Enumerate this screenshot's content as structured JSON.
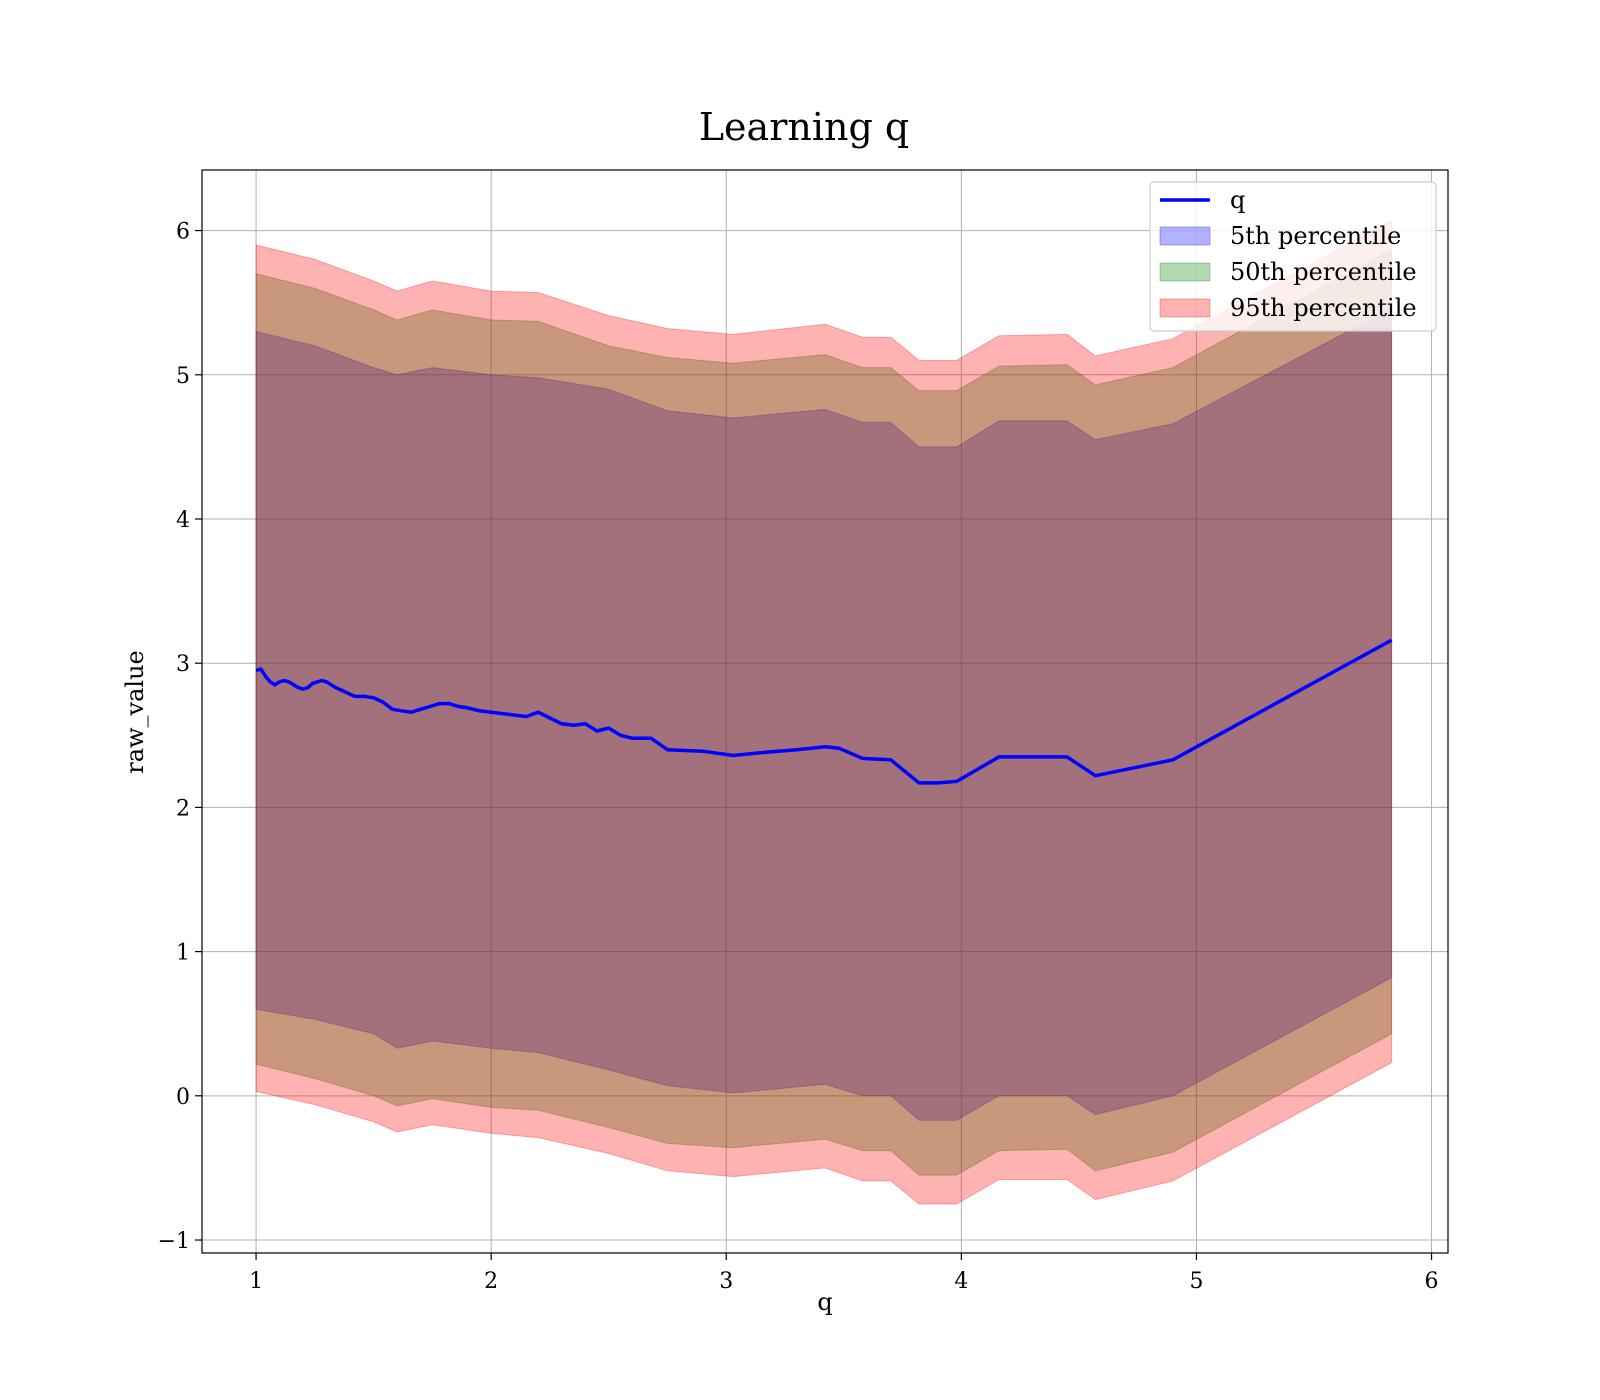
{
  "chart_data": {
    "type": "area",
    "title": "Learning q",
    "xlabel": "q",
    "ylabel": "raw_value",
    "xlim": [
      0.77,
      6.07
    ],
    "ylim": [
      -1.09,
      6.42
    ],
    "xticks": [
      1,
      2,
      3,
      4,
      5,
      6
    ],
    "yticks": [
      -1,
      0,
      1,
      2,
      3,
      4,
      5,
      6
    ],
    "xtick_labels": [
      "1",
      "2",
      "3",
      "4",
      "5",
      "6"
    ],
    "ytick_labels": [
      "−1",
      "0",
      "1",
      "2",
      "3",
      "4",
      "5",
      "6"
    ],
    "grid": true,
    "legend_position": "top-right",
    "line": {
      "name": "q",
      "color": "#0000ff",
      "x": [
        1.0,
        1.02,
        1.04,
        1.06,
        1.08,
        1.1,
        1.12,
        1.14,
        1.16,
        1.18,
        1.2,
        1.22,
        1.24,
        1.26,
        1.28,
        1.3,
        1.34,
        1.38,
        1.42,
        1.46,
        1.5,
        1.54,
        1.58,
        1.62,
        1.66,
        1.7,
        1.74,
        1.78,
        1.82,
        1.86,
        1.9,
        1.95,
        2.0,
        2.05,
        2.1,
        2.15,
        2.2,
        2.25,
        2.3,
        2.35,
        2.4,
        2.45,
        2.5,
        2.55,
        2.6,
        2.68,
        2.75,
        2.9,
        3.03,
        3.15,
        3.3,
        3.42,
        3.48,
        3.58,
        3.7,
        3.82,
        3.9,
        3.98,
        4.16,
        4.45,
        4.57,
        4.9,
        5.83
      ],
      "y": [
        2.95,
        2.96,
        2.91,
        2.87,
        2.85,
        2.87,
        2.88,
        2.87,
        2.85,
        2.83,
        2.82,
        2.83,
        2.86,
        2.87,
        2.88,
        2.87,
        2.83,
        2.8,
        2.77,
        2.77,
        2.76,
        2.73,
        2.68,
        2.67,
        2.66,
        2.68,
        2.7,
        2.72,
        2.72,
        2.7,
        2.69,
        2.67,
        2.66,
        2.65,
        2.64,
        2.63,
        2.66,
        2.62,
        2.58,
        2.57,
        2.58,
        2.53,
        2.55,
        2.5,
        2.48,
        2.48,
        2.4,
        2.39,
        2.36,
        2.38,
        2.4,
        2.42,
        2.41,
        2.34,
        2.33,
        2.17,
        2.17,
        2.18,
        2.35,
        2.35,
        2.22,
        2.33,
        3.16
      ]
    },
    "bands": [
      {
        "name": "5th percentile",
        "color": "#0000ff",
        "opacity": 0.3,
        "x": [
          1.0,
          1.25,
          1.5,
          1.6,
          1.75,
          2.0,
          2.2,
          2.5,
          2.75,
          3.03,
          3.42,
          3.58,
          3.7,
          3.82,
          3.98,
          4.16,
          4.45,
          4.57,
          4.9,
          5.83
        ],
        "lower": [
          0.6,
          0.53,
          0.43,
          0.33,
          0.38,
          0.33,
          0.3,
          0.18,
          0.07,
          0.02,
          0.08,
          0.0,
          0.0,
          -0.17,
          -0.17,
          0.0,
          0.0,
          -0.13,
          0.0,
          0.82
        ],
        "upper": [
          5.3,
          5.2,
          5.05,
          5.0,
          5.05,
          5.0,
          4.98,
          4.9,
          4.75,
          4.7,
          4.76,
          4.67,
          4.67,
          4.5,
          4.5,
          4.68,
          4.68,
          4.55,
          4.66,
          5.46
        ]
      },
      {
        "name": "50th percentile",
        "color": "#008000",
        "opacity": 0.3,
        "x": [
          1.0,
          1.25,
          1.5,
          1.6,
          1.75,
          2.0,
          2.2,
          2.5,
          2.75,
          3.03,
          3.42,
          3.58,
          3.7,
          3.82,
          3.98,
          4.16,
          4.45,
          4.57,
          4.9,
          5.83
        ],
        "lower": [
          0.22,
          0.12,
          0.0,
          -0.07,
          -0.02,
          -0.08,
          -0.1,
          -0.22,
          -0.33,
          -0.36,
          -0.3,
          -0.38,
          -0.38,
          -0.55,
          -0.55,
          -0.38,
          -0.37,
          -0.52,
          -0.39,
          0.43
        ],
        "upper": [
          5.7,
          5.6,
          5.45,
          5.38,
          5.45,
          5.38,
          5.37,
          5.2,
          5.12,
          5.08,
          5.14,
          5.05,
          5.05,
          4.89,
          4.89,
          5.06,
          5.07,
          4.93,
          5.05,
          5.87
        ]
      },
      {
        "name": "95th percentile",
        "color": "#ff0000",
        "opacity": 0.3,
        "x": [
          1.0,
          1.25,
          1.5,
          1.6,
          1.75,
          2.0,
          2.2,
          2.5,
          2.75,
          3.03,
          3.42,
          3.58,
          3.7,
          3.82,
          3.98,
          4.16,
          4.45,
          4.57,
          4.9,
          5.83
        ],
        "lower": [
          0.03,
          -0.06,
          -0.18,
          -0.25,
          -0.2,
          -0.26,
          -0.29,
          -0.4,
          -0.52,
          -0.56,
          -0.5,
          -0.59,
          -0.59,
          -0.75,
          -0.75,
          -0.58,
          -0.58,
          -0.72,
          -0.59,
          0.23
        ],
        "upper": [
          5.9,
          5.8,
          5.65,
          5.58,
          5.65,
          5.58,
          5.57,
          5.41,
          5.32,
          5.28,
          5.35,
          5.26,
          5.26,
          5.1,
          5.1,
          5.27,
          5.28,
          5.13,
          5.25,
          6.07
        ]
      }
    ],
    "legend": [
      {
        "label": "q",
        "kind": "line",
        "color": "#0000ff"
      },
      {
        "label": "5th percentile",
        "kind": "patch",
        "color": "#0000ff"
      },
      {
        "label": "50th percentile",
        "kind": "patch",
        "color": "#008000"
      },
      {
        "label": "95th percentile",
        "kind": "patch",
        "color": "#ff0000"
      }
    ]
  }
}
